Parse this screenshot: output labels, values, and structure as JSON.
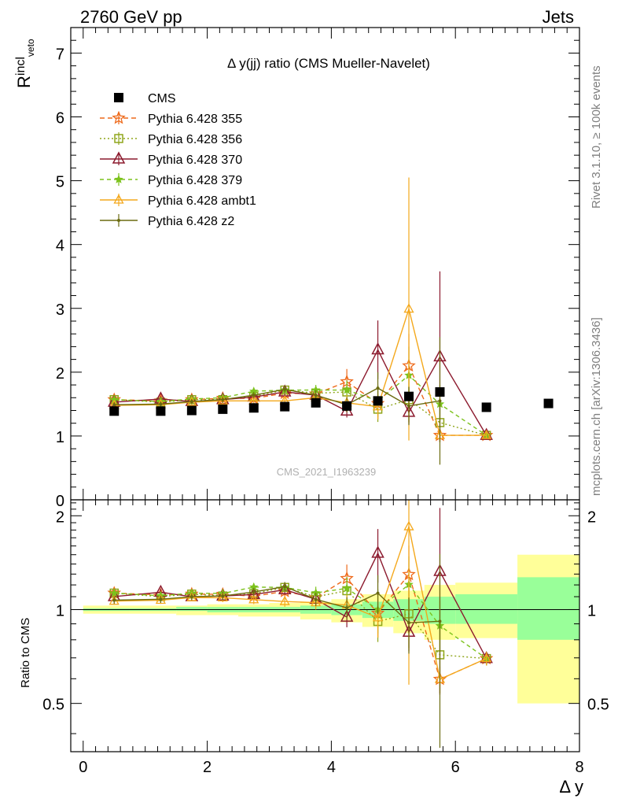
{
  "header": {
    "left": "2760 GeV pp",
    "right": "Jets"
  },
  "side": {
    "top": "Rivet 3.1.10, ≥ 100k events",
    "bottom": "mcplots.cern.ch [arXiv:1306.3436]"
  },
  "chart_data": {
    "type": "line",
    "title": "Δ y(jj) ratio (CMS Mueller-Navelet)",
    "watermark": "CMS_2021_I1963239",
    "xlabel": "Δ y",
    "ylabel_main": "R",
    "ylabel_main_sup": "incl",
    "ylabel_main_sub": "veto",
    "ylabel_ratio": "Ratio to CMS",
    "xlim": [
      -0.2,
      8.0
    ],
    "ylim_main": [
      0,
      7.4
    ],
    "ylim_ratio": [
      0.35,
      2.25
    ],
    "x_ticks": [
      "0",
      "2",
      "4",
      "6",
      "8"
    ],
    "x_tick_values": [
      0,
      2,
      4,
      6,
      8
    ],
    "y_ticks_main": [
      "0",
      "1",
      "2",
      "3",
      "4",
      "5",
      "6",
      "7"
    ],
    "y_tick_values_main": [
      0,
      1,
      2,
      3,
      4,
      5,
      6,
      7
    ],
    "y_ticks_ratio": [
      "0.5",
      "1",
      "2"
    ],
    "y_tick_values_ratio": [
      0.5,
      1,
      2
    ],
    "legend_position": "top-left",
    "data": {
      "name": "CMS",
      "color": "#000000",
      "x": [
        0.5,
        1.25,
        1.75,
        2.25,
        2.75,
        3.25,
        3.75,
        4.25,
        4.75,
        5.25,
        5.75,
        6.5,
        7.5
      ],
      "y": [
        1.39,
        1.39,
        1.4,
        1.42,
        1.44,
        1.46,
        1.52,
        1.47,
        1.55,
        1.62,
        1.69,
        1.45,
        1.51
      ]
    },
    "bands": [
      {
        "x0": 0,
        "x1": 0.75,
        "y_lo": 0.99,
        "y_hi": 1.01,
        "y2_lo": 0.97,
        "y2_hi": 1.03
      },
      {
        "x0": 0.75,
        "x1": 1.5,
        "y_lo": 0.99,
        "y_hi": 1.01,
        "y2_lo": 0.97,
        "y2_hi": 1.03
      },
      {
        "x0": 1.5,
        "x1": 2.0,
        "y_lo": 0.99,
        "y_hi": 1.02,
        "y2_lo": 0.96,
        "y2_hi": 1.03
      },
      {
        "x0": 2.0,
        "x1": 2.5,
        "y_lo": 0.98,
        "y_hi": 1.02,
        "y2_lo": 0.96,
        "y2_hi": 1.04
      },
      {
        "x0": 2.5,
        "x1": 3.0,
        "y_lo": 0.98,
        "y_hi": 1.02,
        "y2_lo": 0.95,
        "y2_hi": 1.04
      },
      {
        "x0": 3.0,
        "x1": 3.5,
        "y_lo": 0.98,
        "y_hi": 1.02,
        "y2_lo": 0.95,
        "y2_hi": 1.05
      },
      {
        "x0": 3.5,
        "x1": 4.0,
        "y_lo": 0.97,
        "y_hi": 1.03,
        "y2_lo": 0.93,
        "y2_hi": 1.06
      },
      {
        "x0": 4.0,
        "x1": 4.5,
        "y_lo": 0.96,
        "y_hi": 1.04,
        "y2_lo": 0.91,
        "y2_hi": 1.08
      },
      {
        "x0": 4.5,
        "x1": 5.0,
        "y_lo": 0.94,
        "y_hi": 1.06,
        "y2_lo": 0.88,
        "y2_hi": 1.12
      },
      {
        "x0": 5.0,
        "x1": 5.5,
        "y_lo": 0.92,
        "y_hi": 1.08,
        "y2_lo": 0.84,
        "y2_hi": 1.15
      },
      {
        "x0": 5.5,
        "x1": 6.0,
        "y_lo": 0.9,
        "y_hi": 1.1,
        "y2_lo": 0.8,
        "y2_hi": 1.2
      },
      {
        "x0": 6.0,
        "x1": 7.0,
        "y_lo": 0.9,
        "y_hi": 1.12,
        "y2_lo": 0.81,
        "y2_hi": 1.22
      },
      {
        "x0": 7.0,
        "x1": 8.0,
        "y_lo": 0.8,
        "y_hi": 1.27,
        "y2_lo": 0.5,
        "y2_hi": 1.5
      }
    ],
    "series": [
      {
        "name": "Pythia 6.428 355",
        "color": "#ee6a1b",
        "dash": "6,4",
        "marker": "star-open",
        "x": [
          0.5,
          1.25,
          1.75,
          2.25,
          2.75,
          3.25,
          3.75,
          4.25,
          4.75,
          5.25,
          5.75,
          6.5
        ],
        "y": [
          1.57,
          1.55,
          1.57,
          1.59,
          1.59,
          1.67,
          1.66,
          1.85,
          1.51,
          2.1,
          1.01,
          1.01
        ],
        "err": [
          0.04,
          0.04,
          0.04,
          0.05,
          0.05,
          0.06,
          0.08,
          0.2,
          0.25,
          0.5,
          0.1,
          0.05
        ]
      },
      {
        "name": "Pythia 6.428 356",
        "color": "#8fa51a",
        "dash": "2,3",
        "marker": "square-open",
        "x": [
          0.5,
          1.25,
          1.75,
          2.25,
          2.75,
          3.25,
          3.75,
          4.25,
          4.75,
          5.25,
          5.75,
          6.5
        ],
        "y": [
          1.57,
          1.53,
          1.57,
          1.57,
          1.62,
          1.72,
          1.67,
          1.69,
          1.42,
          1.57,
          1.21,
          1.01
        ],
        "err": [
          0.04,
          0.04,
          0.04,
          0.05,
          0.05,
          0.06,
          0.08,
          0.15,
          0.2,
          0.35,
          0.3,
          0.05
        ]
      },
      {
        "name": "Pythia 6.428 370",
        "color": "#8c1a2e",
        "dash": "",
        "marker": "triangle-open",
        "x": [
          0.5,
          1.25,
          1.75,
          2.25,
          2.75,
          3.25,
          3.75,
          4.25,
          4.75,
          5.25,
          5.75,
          6.5
        ],
        "y": [
          1.53,
          1.58,
          1.54,
          1.57,
          1.61,
          1.69,
          1.64,
          1.39,
          2.35,
          1.37,
          2.24,
          1.01
        ],
        "err": [
          0.04,
          0.04,
          0.04,
          0.05,
          0.05,
          0.06,
          0.08,
          0.1,
          0.46,
          0.18,
          1.34,
          0.05
        ]
      },
      {
        "name": "Pythia 6.428 379",
        "color": "#7cc21c",
        "dash": "5,4",
        "marker": "star-filled",
        "x": [
          0.5,
          1.25,
          1.75,
          2.25,
          2.75,
          3.25,
          3.75,
          4.25,
          4.75,
          5.25,
          5.75,
          6.5
        ],
        "y": [
          1.57,
          1.54,
          1.58,
          1.6,
          1.7,
          1.72,
          1.72,
          1.72,
          1.55,
          1.95,
          1.5,
          1.01
        ],
        "err": [
          0.04,
          0.04,
          0.04,
          0.05,
          0.05,
          0.06,
          0.08,
          0.15,
          0.25,
          0.45,
          0.3,
          0.05
        ]
      },
      {
        "name": "Pythia 6.428 ambt1",
        "color": "#f4a81c",
        "dash": "",
        "marker": "triangle-open-small",
        "x": [
          0.5,
          1.25,
          1.75,
          2.25,
          2.75,
          3.25,
          3.75,
          4.25,
          4.75,
          5.25,
          5.75,
          6.5
        ],
        "y": [
          1.48,
          1.49,
          1.53,
          1.55,
          1.55,
          1.55,
          1.6,
          1.52,
          1.46,
          2.99,
          1.01,
          1.01
        ],
        "err": [
          0.04,
          0.04,
          0.04,
          0.05,
          0.05,
          0.06,
          0.08,
          0.12,
          0.2,
          2.06,
          0.05,
          0.05
        ]
      },
      {
        "name": "Pythia 6.428 z2",
        "color": "#6b6b10",
        "dash": "",
        "marker": "dot",
        "x": [
          0.5,
          1.25,
          1.75,
          2.25,
          2.75,
          3.25,
          3.75,
          4.25,
          4.75,
          5.25,
          5.75
        ],
        "y": [
          1.49,
          1.5,
          1.54,
          1.57,
          1.64,
          1.73,
          1.64,
          1.49,
          1.75,
          1.47,
          1.55
        ],
        "err": [
          0.04,
          0.04,
          0.04,
          0.05,
          0.05,
          0.06,
          0.08,
          0.12,
          0.25,
          0.3,
          1.0
        ]
      }
    ]
  }
}
